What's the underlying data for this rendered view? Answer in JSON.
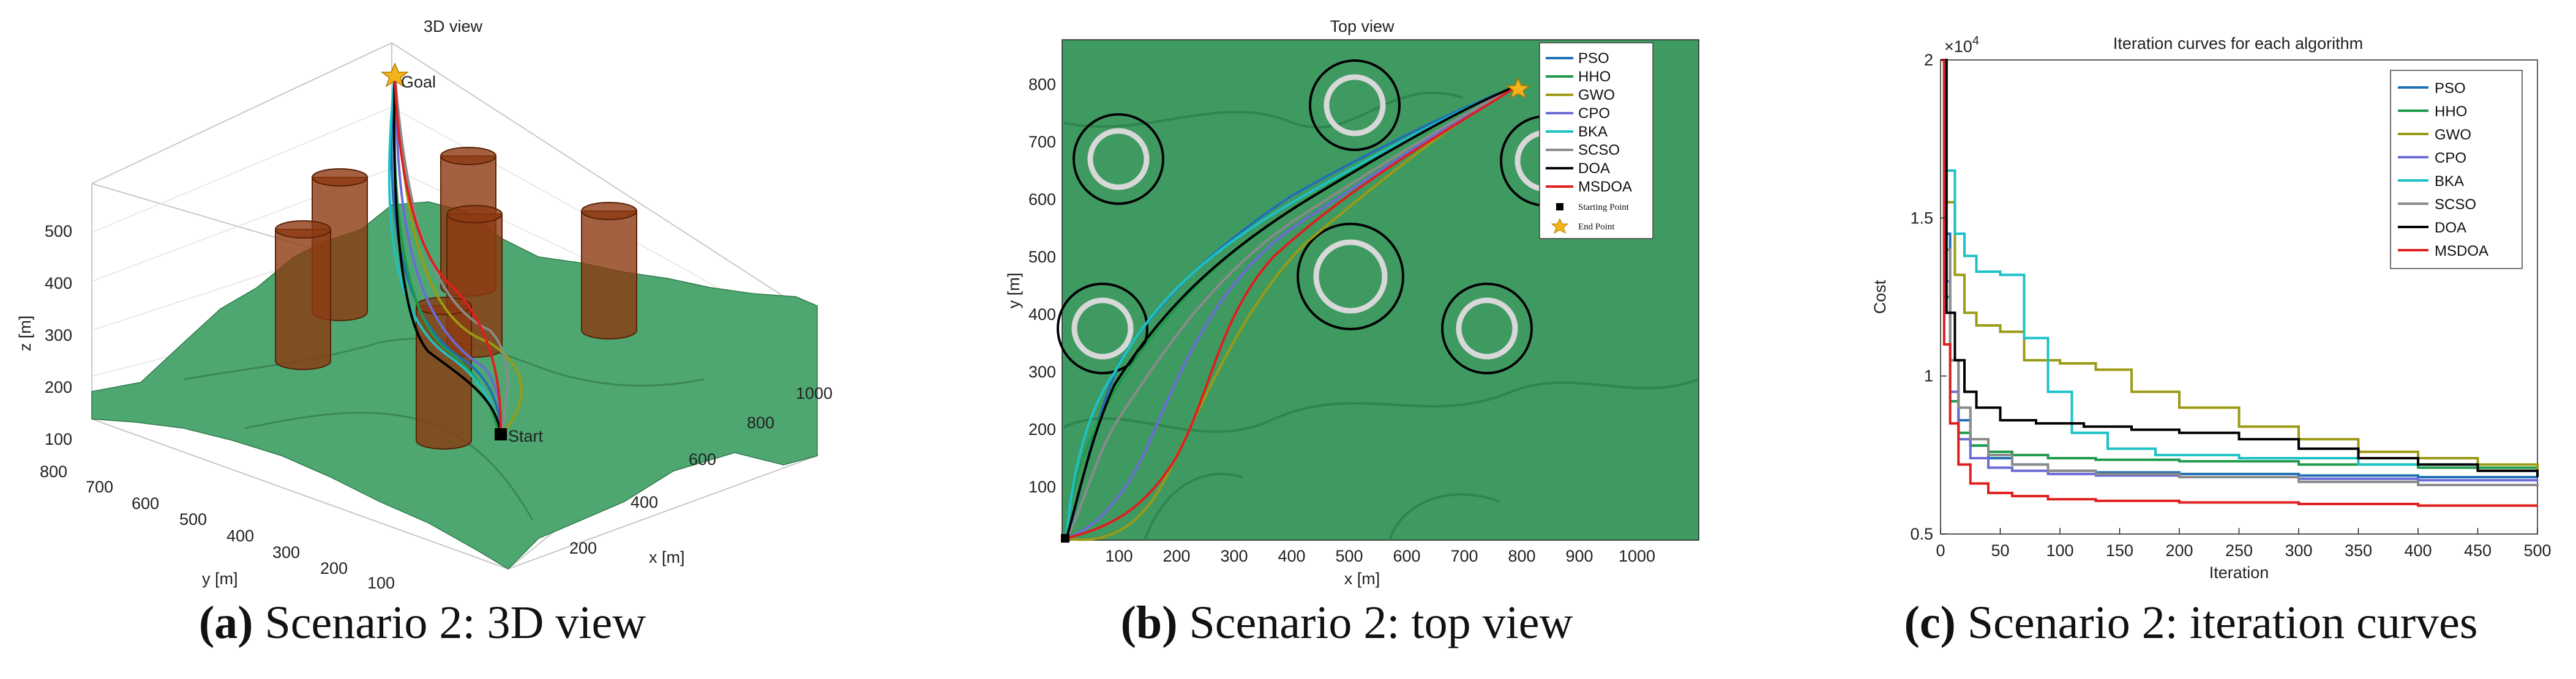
{
  "panels": {
    "a": {
      "caption_letter": "(a)",
      "caption_text": " Scenario 2: 3D view",
      "title": "3D view",
      "zlabel": "z [m]",
      "ylabel": "y [m]",
      "xlabel": "x [m]",
      "z_ticks": [
        "100",
        "200",
        "300",
        "400",
        "500"
      ],
      "y_ticks": [
        "800",
        "700",
        "600",
        "500",
        "400",
        "300",
        "200",
        "100"
      ],
      "x_ticks": [
        "200",
        "400",
        "600",
        "800",
        "1000"
      ],
      "goal_label": "Goal",
      "start_label": "Start"
    },
    "b": {
      "caption_letter": "(b)",
      "caption_text": " Scenario 2: top view",
      "title": "Top view",
      "xlabel": "x [m]",
      "ylabel": "y [m]",
      "x_ticks": [
        "100",
        "200",
        "300",
        "400",
        "500",
        "600",
        "700",
        "800",
        "900",
        "1000"
      ],
      "y_ticks": [
        "100",
        "200",
        "300",
        "400",
        "500",
        "600",
        "700",
        "800"
      ],
      "legend": [
        "PSO",
        "HHO",
        "GWO",
        "CPO",
        "BKA",
        "SCSO",
        "DOA",
        "MSDOA"
      ],
      "legend_start": "Starting Point",
      "legend_end": "End Point"
    },
    "c": {
      "caption_letter": "(c)",
      "caption_text": " Scenario 2: iteration curves",
      "title": "Iteration curves for each algorithm",
      "multiplier": "×10",
      "multiplier_exp": "4"
    }
  },
  "colors": {
    "PSO": "#1f6fb5",
    "HHO": "#1d9a4a",
    "GWO": "#9a9a14",
    "CPO": "#6b6bd6",
    "BKA": "#1cc1c6",
    "SCSO": "#8a8a8a",
    "DOA": "#000000",
    "MSDOA": "#e01e1e",
    "terrain": "#3f9a62",
    "cylinder": "#8c3a12"
  },
  "chart_data": [
    {
      "type": "line",
      "title": "Iteration curves for each algorithm",
      "xlabel": "Iteration",
      "ylabel": "Cost",
      "xlim": [
        0,
        500
      ],
      "ylim": [
        0.5,
        2
      ],
      "y_scale_note": "×10^4",
      "x_ticks": [
        0,
        50,
        100,
        150,
        200,
        250,
        300,
        350,
        400,
        450,
        500
      ],
      "y_ticks": [
        0.5,
        1,
        1.5,
        2
      ],
      "legend_position": "top-right",
      "series": [
        {
          "name": "PSO",
          "x": [
            0,
            3,
            8,
            15,
            25,
            40,
            60,
            90,
            130,
            200,
            300,
            400,
            500
          ],
          "y": [
            2.0,
            1.45,
            1.05,
            0.86,
            0.78,
            0.74,
            0.72,
            0.7,
            0.695,
            0.69,
            0.685,
            0.68,
            0.68
          ]
        },
        {
          "name": "HHO",
          "x": [
            0,
            3,
            8,
            15,
            25,
            40,
            60,
            90,
            130,
            200,
            300,
            400,
            500
          ],
          "y": [
            2.0,
            1.25,
            0.92,
            0.82,
            0.78,
            0.76,
            0.75,
            0.74,
            0.735,
            0.73,
            0.72,
            0.71,
            0.7
          ]
        },
        {
          "name": "GWO",
          "x": [
            0,
            5,
            12,
            20,
            30,
            50,
            70,
            100,
            130,
            160,
            200,
            250,
            300,
            350,
            400,
            450,
            500
          ],
          "y": [
            2.0,
            1.55,
            1.32,
            1.2,
            1.16,
            1.14,
            1.05,
            1.04,
            1.02,
            0.95,
            0.9,
            0.84,
            0.8,
            0.76,
            0.74,
            0.72,
            0.7
          ]
        },
        {
          "name": "CPO",
          "x": [
            0,
            3,
            8,
            15,
            25,
            40,
            60,
            90,
            130,
            200,
            300,
            400,
            500
          ],
          "y": [
            2.0,
            1.3,
            0.95,
            0.8,
            0.74,
            0.71,
            0.7,
            0.69,
            0.685,
            0.68,
            0.675,
            0.67,
            0.67
          ]
        },
        {
          "name": "BKA",
          "x": [
            0,
            5,
            12,
            20,
            30,
            50,
            70,
            90,
            110,
            140,
            180,
            250,
            350,
            450,
            500
          ],
          "y": [
            2.0,
            1.65,
            1.45,
            1.38,
            1.33,
            1.32,
            1.12,
            0.95,
            0.82,
            0.77,
            0.75,
            0.74,
            0.72,
            0.7,
            0.7
          ]
        },
        {
          "name": "SCSO",
          "x": [
            0,
            3,
            8,
            15,
            25,
            40,
            60,
            90,
            130,
            200,
            300,
            400,
            500
          ],
          "y": [
            2.0,
            1.4,
            1.05,
            0.9,
            0.8,
            0.75,
            0.72,
            0.7,
            0.69,
            0.68,
            0.665,
            0.655,
            0.65
          ]
        },
        {
          "name": "DOA",
          "x": [
            0,
            5,
            12,
            20,
            30,
            50,
            80,
            120,
            160,
            200,
            250,
            300,
            350,
            400,
            450,
            500
          ],
          "y": [
            2.0,
            1.2,
            1.05,
            0.95,
            0.9,
            0.86,
            0.85,
            0.84,
            0.83,
            0.82,
            0.8,
            0.77,
            0.74,
            0.72,
            0.7,
            0.68
          ]
        },
        {
          "name": "MSDOA",
          "x": [
            0,
            3,
            8,
            15,
            25,
            40,
            60,
            90,
            130,
            200,
            300,
            400,
            500
          ],
          "y": [
            2.0,
            1.1,
            0.85,
            0.72,
            0.66,
            0.63,
            0.62,
            0.61,
            0.605,
            0.6,
            0.595,
            0.59,
            0.59
          ]
        }
      ]
    }
  ]
}
